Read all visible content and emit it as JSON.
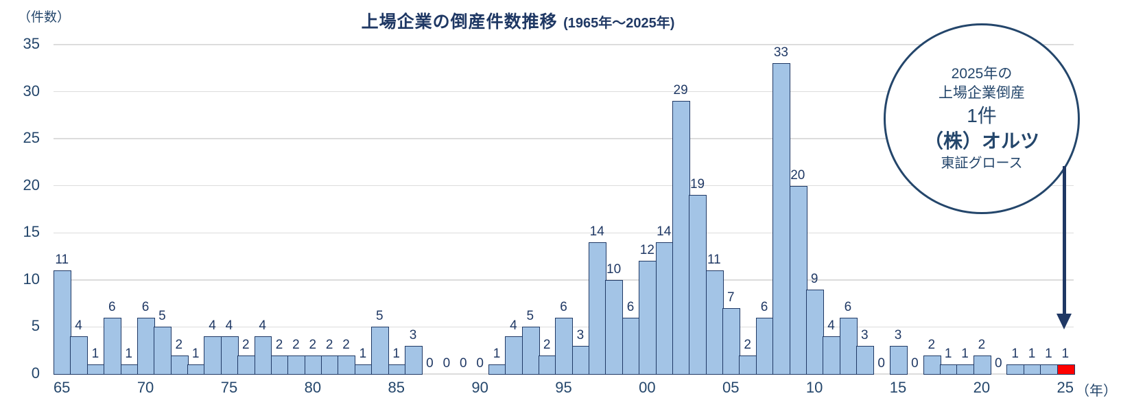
{
  "chart_data": {
    "type": "bar",
    "title": "上場企業の倒産件数推移",
    "title_suffix": "(1965年～2025年)",
    "y_axis_unit_label": "（件数）",
    "x_axis_unit_label": "（年）",
    "years": [
      1965,
      1966,
      1967,
      1968,
      1969,
      1970,
      1971,
      1972,
      1973,
      1974,
      1975,
      1976,
      1977,
      1978,
      1979,
      1980,
      1981,
      1982,
      1983,
      1984,
      1985,
      1986,
      1987,
      1988,
      1989,
      1990,
      1991,
      1992,
      1993,
      1994,
      1995,
      1996,
      1997,
      1998,
      1999,
      2000,
      2001,
      2002,
      2003,
      2004,
      2005,
      2006,
      2007,
      2008,
      2009,
      2010,
      2011,
      2012,
      2013,
      2014,
      2015,
      2016,
      2017,
      2018,
      2019,
      2020,
      2021,
      2022,
      2023,
      2024,
      2025
    ],
    "values": [
      11,
      4,
      1,
      6,
      1,
      6,
      5,
      2,
      1,
      4,
      4,
      2,
      4,
      2,
      2,
      2,
      2,
      2,
      1,
      5,
      1,
      3,
      0,
      0,
      0,
      0,
      1,
      4,
      5,
      2,
      6,
      3,
      14,
      10,
      6,
      12,
      14,
      29,
      19,
      11,
      7,
      2,
      6,
      33,
      20,
      9,
      4,
      6,
      3,
      0,
      3,
      0,
      2,
      1,
      1,
      2,
      0,
      1,
      1,
      1,
      1
    ],
    "x_tick_labels": [
      "65",
      "70",
      "75",
      "80",
      "85",
      "90",
      "95",
      "00",
      "05",
      "10",
      "15",
      "20",
      "25"
    ],
    "y_ticks": [
      0,
      5,
      10,
      15,
      20,
      25,
      30,
      35
    ],
    "ylim": [
      0,
      35
    ],
    "grid": true,
    "legend": "none",
    "show_data_labels": true,
    "bar_fill": "#A3C4E6",
    "bar_border": "#1F3864",
    "highlight_year": 2025,
    "highlight_fill": "#FF0000",
    "gridline_color": "#DCDCDC"
  },
  "annotation": {
    "line1": "2025年の",
    "line2": "上場企業倒産",
    "line3": "1件",
    "line4": "（株）オルツ",
    "line5": "東証グロース",
    "circle_border_color": "#24466B",
    "arrow_color": "#1F3864"
  }
}
